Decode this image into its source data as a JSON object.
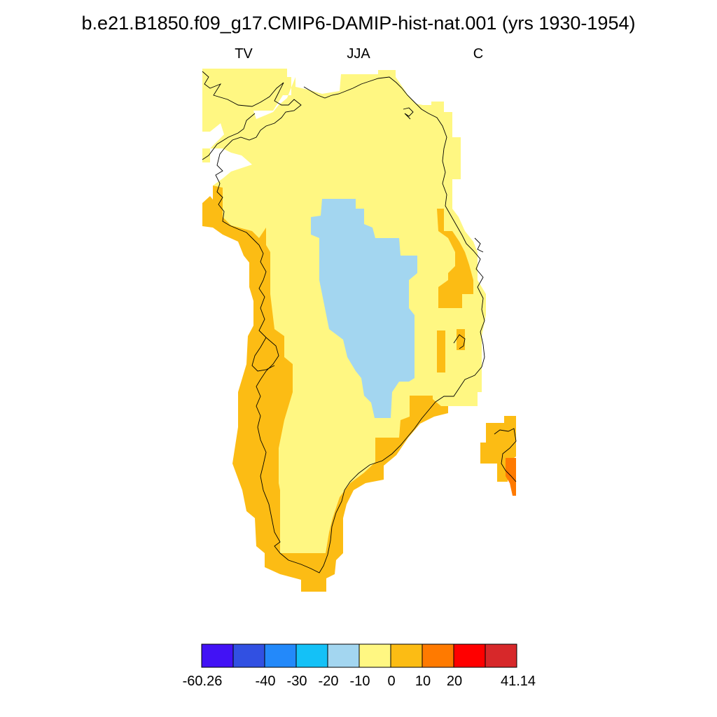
{
  "title": "b.e21.B1850.f09_g17.CMIP6-DAMIP-hist-nat.001 (yrs 1930-1954)",
  "subtitles": {
    "left": "TV",
    "center": "JJA",
    "right": "C"
  },
  "colors": {
    "lt_neg60": "#4212f5",
    "neg60_neg50": "#3150e2",
    "neg50_neg40": "#2389fa",
    "neg40_neg30": "#14c1f7",
    "neg30_neg20": "#a3d6f0",
    "neg20_neg10": "#fff782",
    "neg10_0": "#fcbc14",
    "0_10": "#ff7a00",
    "10_20": "#ff0000",
    "gt_20": "#d7282a",
    "coastline": "#000000"
  },
  "colorbar": {
    "labels": [
      "-60.26",
      "-40",
      "-30",
      "-20",
      "-10",
      "0",
      "10",
      "20",
      "41.14"
    ]
  }
}
